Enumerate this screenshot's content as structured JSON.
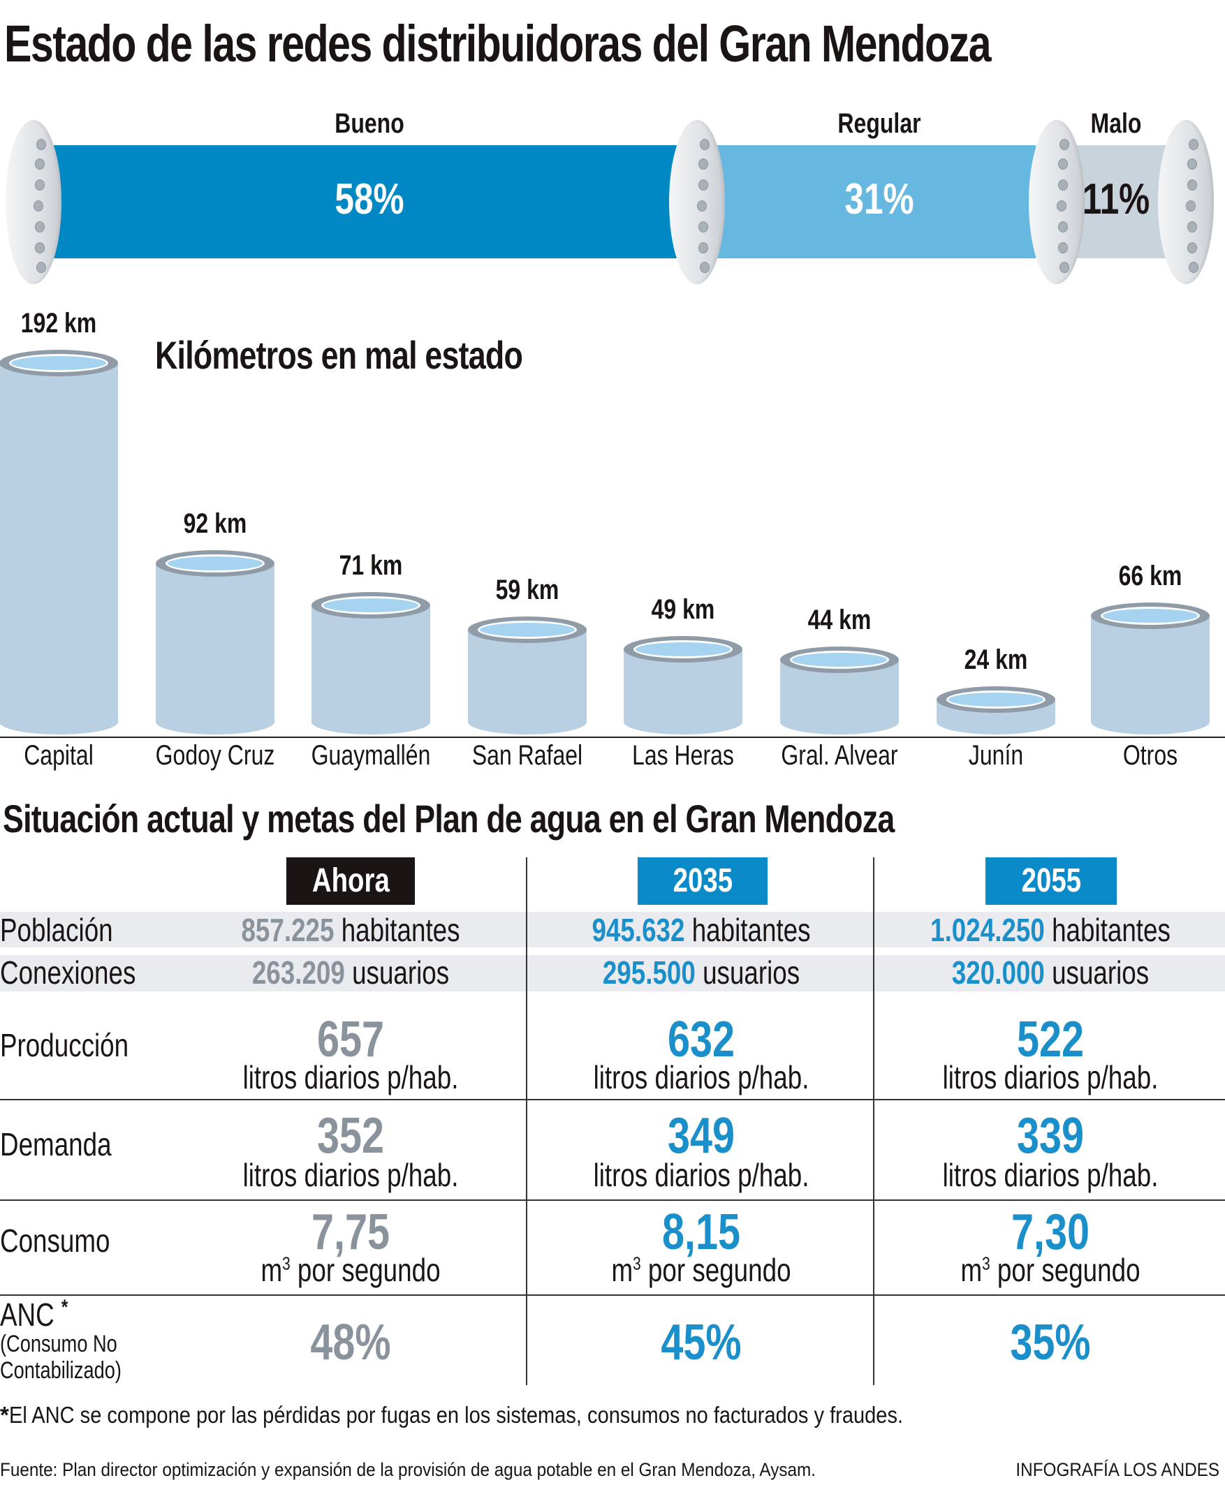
{
  "title": "Estado de las redes distribuidoras del Gran Mendoza",
  "colors": {
    "bueno": "#0088c4",
    "regular": "#66b8e0",
    "malo": "#c9d3dc",
    "cylinder": "#b9cfe2",
    "accent_blue": "#1a8fc9",
    "gray_value": "#8a939c",
    "dark_header": "#1a1414"
  },
  "chart_data": [
    {
      "type": "bar",
      "subtype": "stacked-horizontal-pipe",
      "categories": [
        "Bueno",
        "Regular",
        "Malo"
      ],
      "values": [
        58,
        31,
        11
      ],
      "labels": [
        "58%",
        "31%",
        "11%"
      ],
      "unit": "%"
    },
    {
      "type": "bar",
      "title": "Kilómetros en mal estado",
      "categories": [
        "Capital",
        "Godoy Cruz",
        "Guaymallén",
        "San Rafael",
        "Las Heras",
        "Gral. Alvear",
        "Junín",
        "Otros"
      ],
      "values": [
        192,
        92,
        71,
        59,
        49,
        44,
        24,
        66
      ],
      "labels": [
        "192 km",
        "92 km",
        "71 km",
        "59 km",
        "49 km",
        "44 km",
        "24 km",
        "66 km"
      ],
      "unit": "km",
      "ylim": [
        0,
        192
      ],
      "grid": false
    }
  ],
  "table": {
    "title": "Situación actual y metas del Plan de agua en el Gran Mendoza",
    "columns": [
      "Ahora",
      "2035",
      "2055"
    ],
    "rows": {
      "poblacion": {
        "label": "Población",
        "values": [
          "857.225",
          "945.632",
          "1.024.250"
        ],
        "unit": "habitantes"
      },
      "conexiones": {
        "label": "Conexiones",
        "values": [
          "263.209",
          "295.500",
          "320.000"
        ],
        "unit": "usuarios"
      },
      "produccion": {
        "label": "Producción",
        "values": [
          "657",
          "632",
          "522"
        ],
        "unit": "litros diarios p/hab."
      },
      "demanda": {
        "label": "Demanda",
        "values": [
          "352",
          "349",
          "339"
        ],
        "unit": "litros diarios p/hab."
      },
      "consumo": {
        "label": "Consumo",
        "values": [
          "7,75",
          "8,15",
          "7,30"
        ],
        "unit_base": "m",
        "unit_sup": "3",
        "unit_rest": " por segundo"
      },
      "anc": {
        "label": "ANC",
        "asterisk": "*",
        "sublabel1": "(Consumo No",
        "sublabel2": "Contabilizado)",
        "values": [
          "48%",
          "45%",
          "35%"
        ]
      }
    }
  },
  "footnote": {
    "mark": "*",
    "text": " El ANC se  compone por las pérdidas por fugas en los sistemas, consumos no facturados y fraudes."
  },
  "source": "Fuente: Plan director optimización y expansión de la provisión de agua potable en el Gran Mendoza, Aysam.",
  "credit": "INFOGRAFÍA LOS ANDES"
}
